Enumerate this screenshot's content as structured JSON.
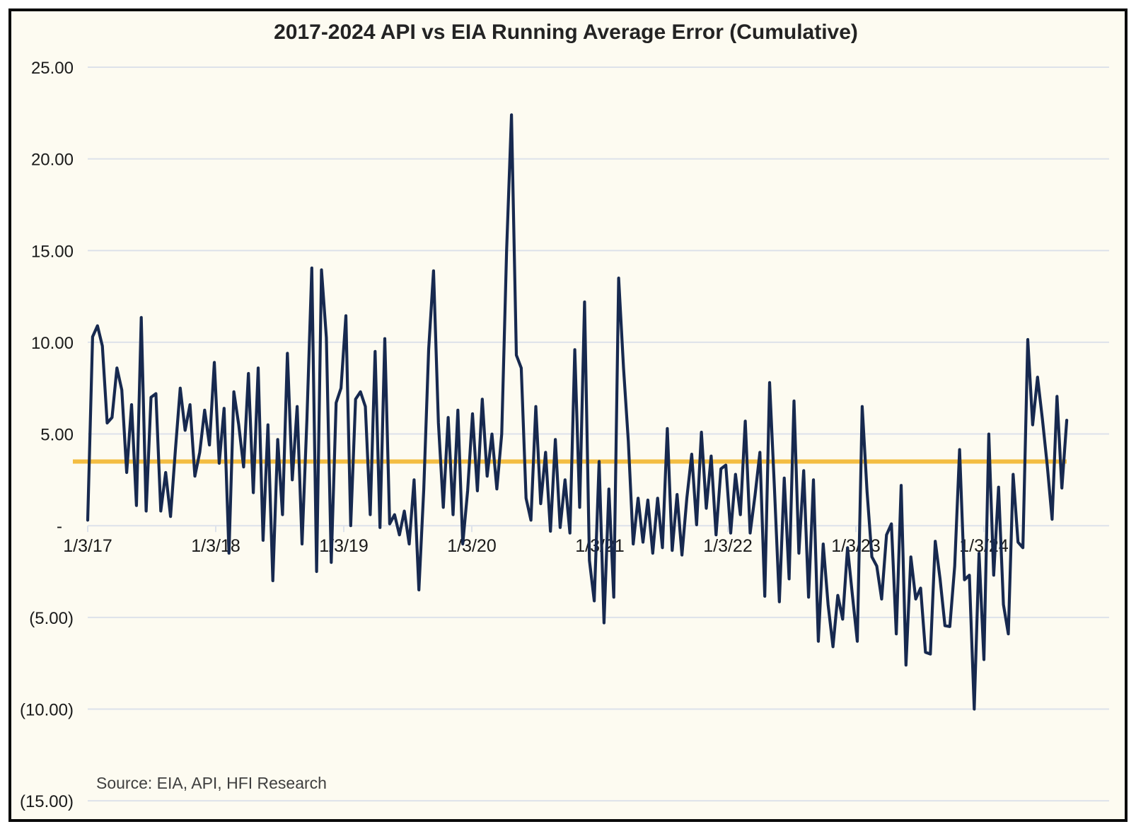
{
  "chart_data": {
    "type": "line",
    "title": "2017-2024 API vs EIA Running Average Error (Cumulative)",
    "source_note": "Source: EIA, API, HFI Research",
    "x_tick_labels": [
      "1/3/17",
      "1/3/18",
      "1/3/19",
      "1/3/20",
      "1/3/21",
      "1/3/22",
      "1/3/23",
      "1/3/24"
    ],
    "y_tick_labels": [
      "25.00",
      "20.00",
      "15.00",
      "10.00",
      "5.00",
      "-",
      "(5.00)",
      "(10.00)",
      "(15.00)"
    ],
    "ylim": [
      -15,
      25
    ],
    "y_step": 5,
    "grid": "horizontal-only",
    "legend": "none",
    "colors": {
      "error_line": "#17294F",
      "average_line": "#F3BD42",
      "background": "#FDFBF1",
      "gridline": "#DDE2EA",
      "axis_text": "#1a1a1a",
      "title_text": "#232323",
      "source_text": "#3f3f3f",
      "frame_border": "#0a0a0a"
    },
    "series": [
      {
        "name": "API vs EIA cumulative running average error",
        "start_date": "1/3/17",
        "interval_weeks": 2,
        "values": [
          0.3,
          10.3,
          10.9,
          9.8,
          5.6,
          5.9,
          8.6,
          7.4,
          2.9,
          6.6,
          1.1,
          11.35,
          0.8,
          7.0,
          7.2,
          0.8,
          2.9,
          0.5,
          4.1,
          7.5,
          5.2,
          6.6,
          2.7,
          4.0,
          6.3,
          4.4,
          8.9,
          3.4,
          6.4,
          -1.5,
          7.3,
          5.5,
          3.2,
          8.3,
          1.8,
          8.6,
          -0.8,
          5.5,
          -3.0,
          4.7,
          0.6,
          9.4,
          2.5,
          6.5,
          -1.0,
          5.8,
          14.05,
          -2.5,
          13.95,
          10.25,
          -2.0,
          6.7,
          7.5,
          11.45,
          0.0,
          6.9,
          7.3,
          6.5,
          0.6,
          9.5,
          -0.1,
          10.2,
          0.1,
          0.6,
          -0.5,
          0.8,
          -1.0,
          2.5,
          -3.5,
          2.0,
          9.6,
          13.9,
          5.6,
          1.0,
          5.9,
          0.6,
          6.3,
          -1.0,
          1.9,
          6.1,
          1.9,
          6.9,
          2.7,
          5.0,
          2.0,
          5.0,
          15.0,
          22.4,
          9.3,
          8.6,
          1.5,
          0.3,
          6.5,
          1.2,
          4.0,
          -0.3,
          4.7,
          -0.1,
          2.5,
          -0.4,
          9.6,
          1.0,
          12.2,
          -1.9,
          -4.1,
          3.5,
          -5.3,
          2.0,
          -3.9,
          13.5,
          8.6,
          4.6,
          -1.0,
          1.5,
          -0.9,
          1.4,
          -1.5,
          1.5,
          -1.2,
          5.3,
          -1.35,
          1.7,
          -1.6,
          1.5,
          3.9,
          0.05,
          5.1,
          0.95,
          3.8,
          -0.5,
          3.1,
          3.3,
          -0.4,
          2.8,
          0.6,
          5.7,
          -0.4,
          1.65,
          4.0,
          -3.85,
          7.8,
          2.0,
          -4.15,
          2.6,
          -2.9,
          6.8,
          -1.5,
          3.0,
          -3.9,
          2.5,
          -6.3,
          -1.0,
          -4.3,
          -6.6,
          -3.8,
          -5.1,
          -1.2,
          -3.8,
          -6.3,
          6.5,
          1.85,
          -1.7,
          -2.2,
          -4.0,
          -0.5,
          0.1,
          -5.9,
          2.2,
          -7.6,
          -1.7,
          -4.0,
          -3.4,
          -6.9,
          -7.0,
          -0.85,
          -2.9,
          -5.45,
          -5.5,
          -2.2,
          4.15,
          -2.95,
          -2.7,
          -10.0,
          -1.5,
          -7.3,
          5.0,
          -2.7,
          2.1,
          -4.3,
          -5.9,
          2.8,
          -0.9,
          -1.2,
          10.15,
          5.5,
          8.1,
          5.8,
          3.3,
          0.35,
          7.05,
          2.05,
          5.75
        ]
      },
      {
        "name": "Average error reference line",
        "type": "constant",
        "value": 3.5
      }
    ]
  }
}
